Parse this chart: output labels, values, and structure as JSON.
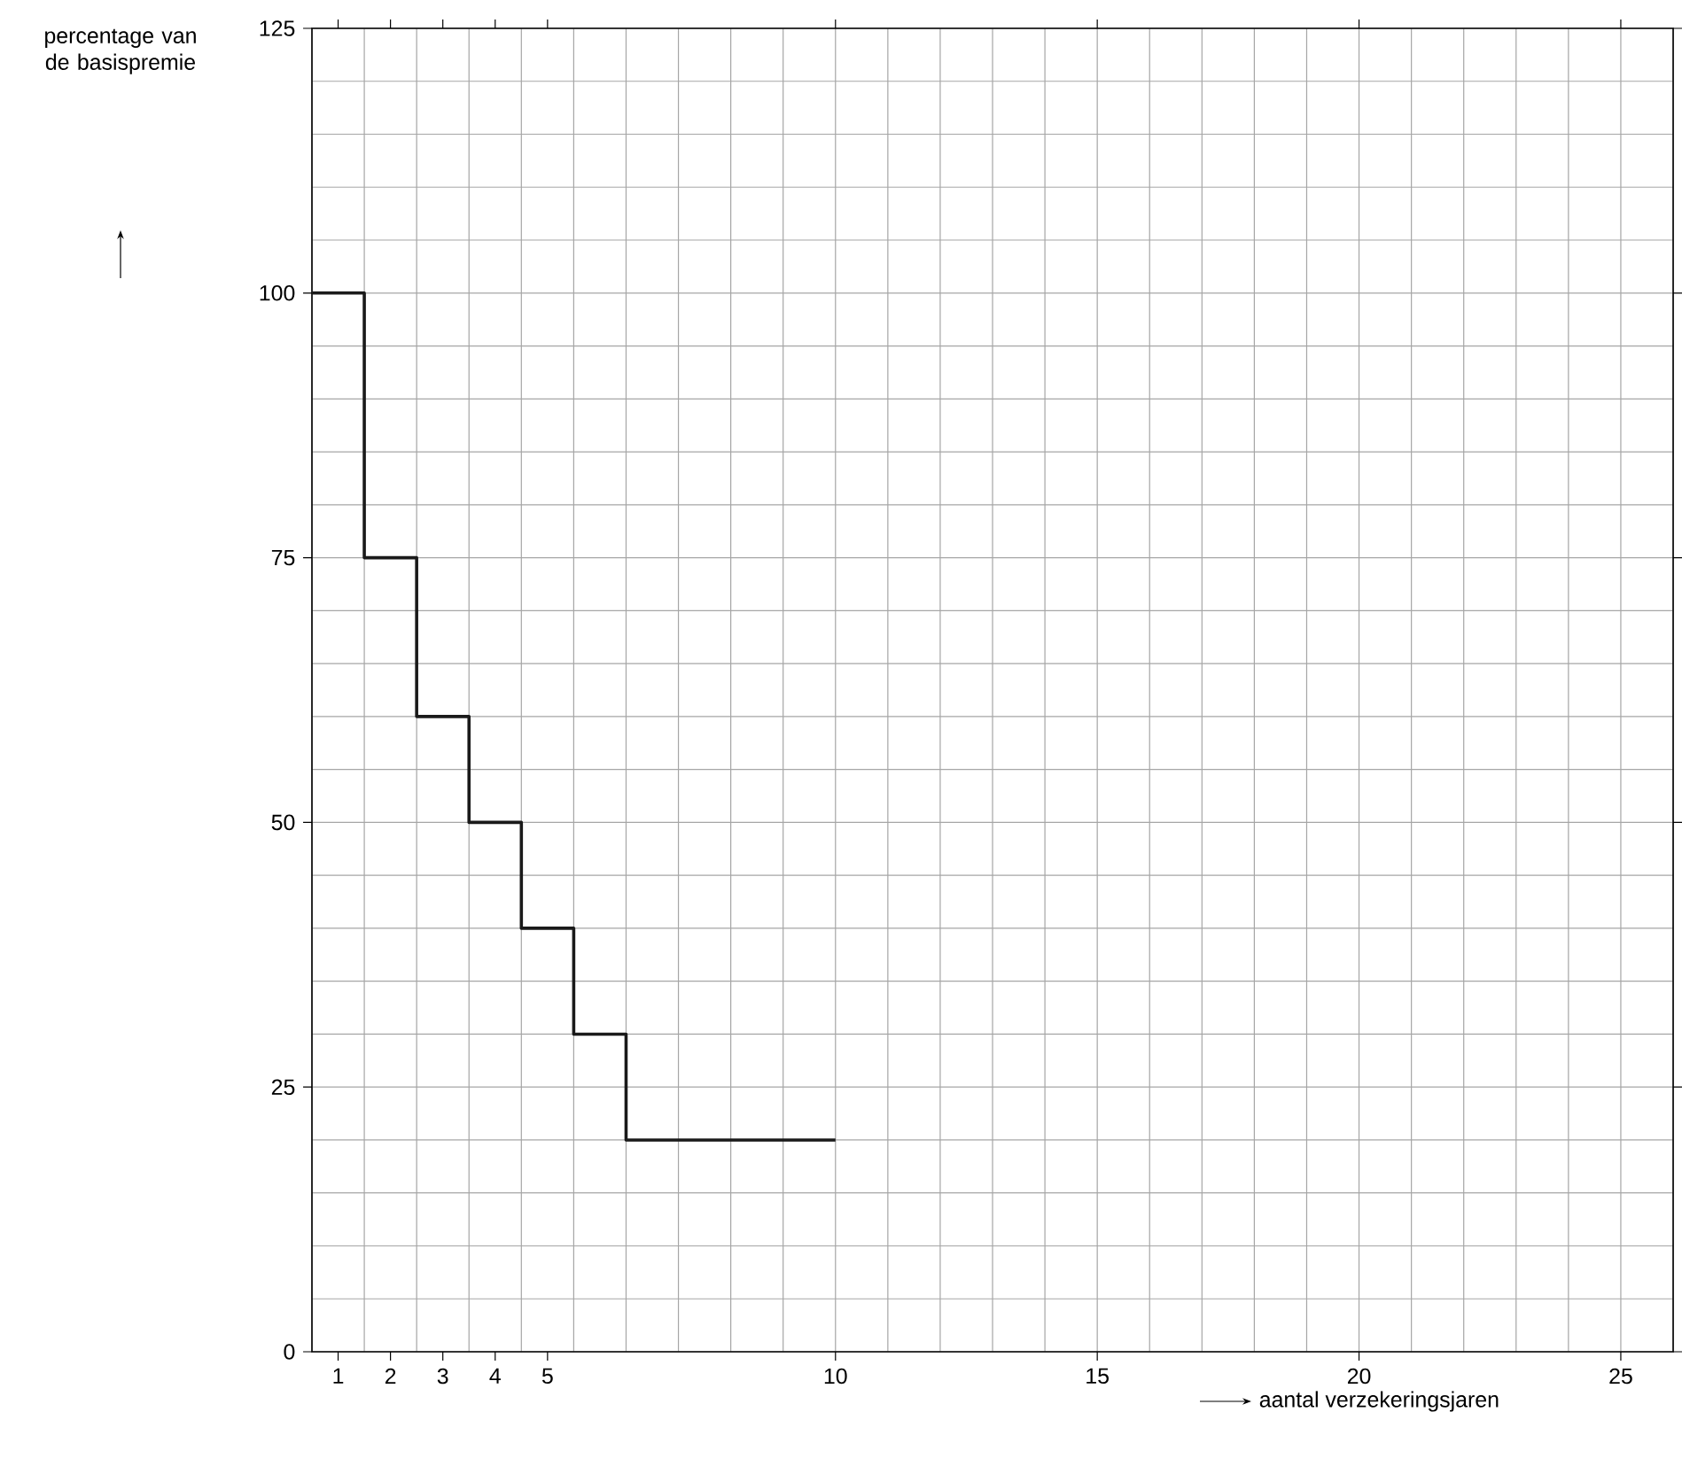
{
  "chart_data": {
    "type": "step",
    "xlabel": "aantal verzekeringsjaren",
    "ylabel": "percentage van de basispremie",
    "x": [
      0,
      1,
      2,
      3,
      4,
      5,
      6,
      10
    ],
    "values": [
      100,
      75,
      60,
      50,
      40,
      30,
      20,
      20
    ],
    "color": "#1a1a1a",
    "xlim": [
      0,
      26
    ],
    "ylim": [
      0,
      125
    ],
    "xticks": [
      {
        "value": 0.5,
        "label": "1"
      },
      {
        "value": 1.5,
        "label": "2"
      },
      {
        "value": 2.5,
        "label": "3"
      },
      {
        "value": 3.5,
        "label": "4"
      },
      {
        "value": 4.5,
        "label": "5"
      },
      10,
      15,
      20,
      25
    ],
    "yticks": [
      0,
      25,
      50,
      75,
      100,
      125
    ],
    "grid": true
  }
}
